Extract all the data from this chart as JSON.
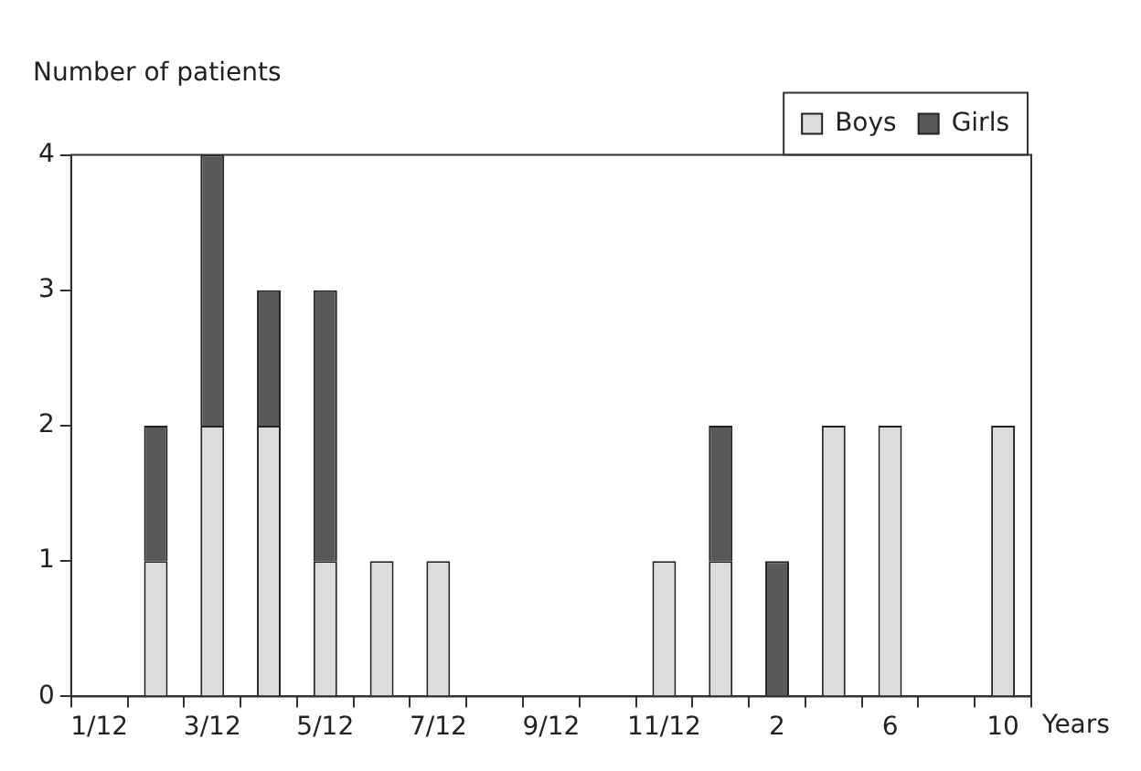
{
  "chart_data": {
    "type": "bar",
    "stacked": true,
    "ylabel": "Number of patients",
    "xlabel": "Years",
    "categories": [
      "1/12",
      null,
      "3/12",
      null,
      "5/12",
      null,
      "7/12",
      null,
      "9/12",
      null,
      "11/12",
      null,
      "2",
      null,
      "6",
      null,
      "10"
    ],
    "series": [
      {
        "name": "Boys",
        "color": "#dcdcdc",
        "values": [
          0,
          1,
          2,
          2,
          1,
          1,
          1,
          0,
          0,
          0,
          1,
          1,
          0,
          2,
          2,
          0,
          2
        ]
      },
      {
        "name": "Girls",
        "color": "#595959",
        "values": [
          0,
          1,
          2,
          1,
          2,
          0,
          0,
          0,
          0,
          0,
          0,
          1,
          1,
          0,
          0,
          0,
          0
        ]
      }
    ],
    "ylim": [
      0,
      4
    ],
    "yticks": [
      0,
      1,
      2,
      3,
      4
    ],
    "grid": false,
    "legend": "top right"
  }
}
